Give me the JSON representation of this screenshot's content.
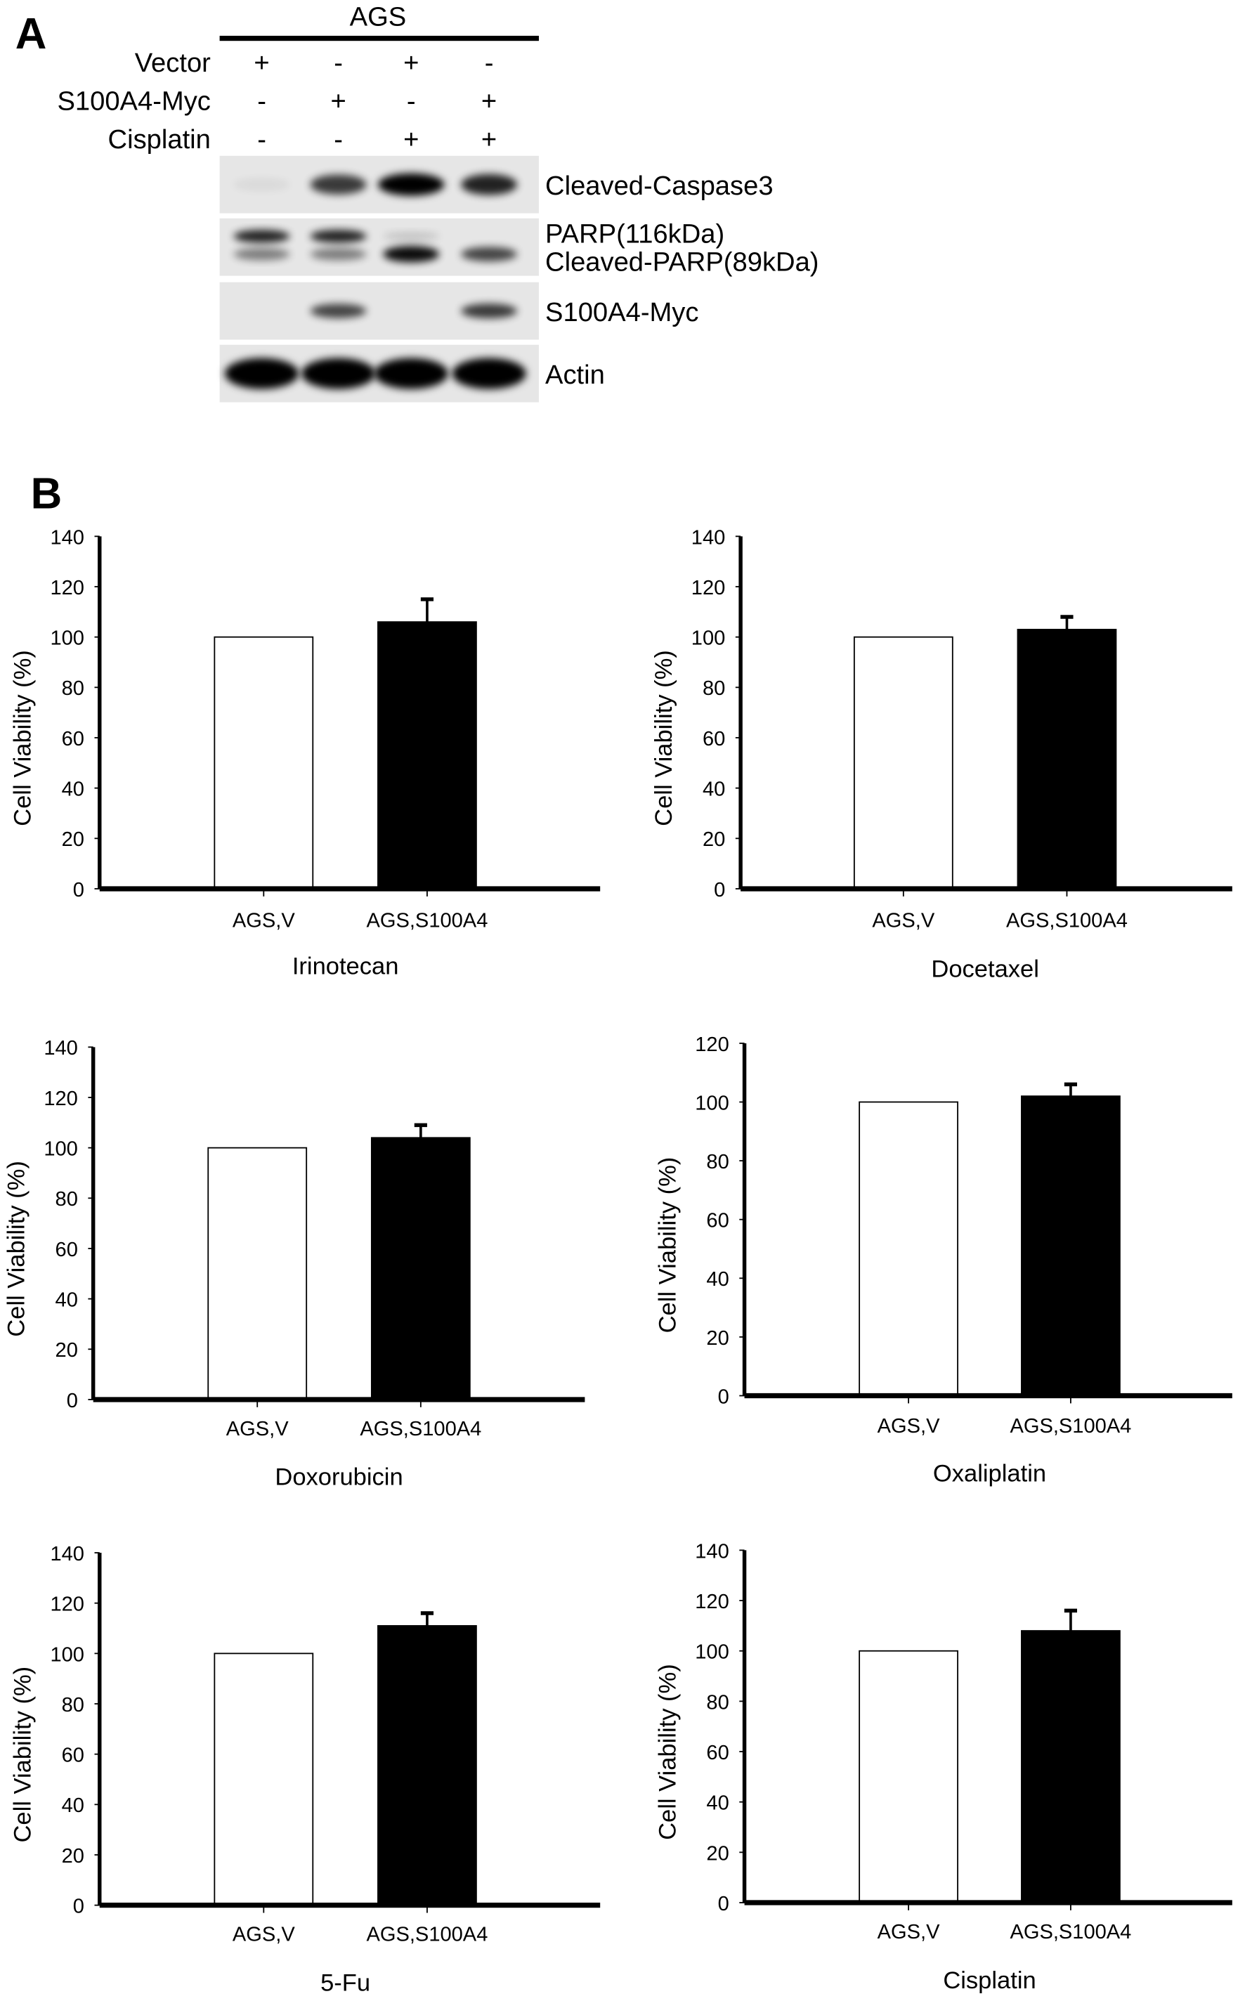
{
  "panel_a": {
    "letter": "A",
    "cell_line": "AGS",
    "conditions": [
      {
        "label": "Vector",
        "signs": [
          "+",
          "-",
          "+",
          "-"
        ]
      },
      {
        "label": "S100A4-Myc",
        "signs": [
          "-",
          "+",
          "-",
          "+"
        ]
      },
      {
        "label": "Cisplatin",
        "signs": [
          "-",
          "-",
          "+",
          "+"
        ]
      }
    ],
    "blots": [
      {
        "labels": [
          "Cleaved-Caspase3"
        ],
        "band_intensity": [
          0.05,
          0.75,
          1.0,
          0.85
        ]
      },
      {
        "labels": [
          "PARP(116kDa)",
          "Cleaved-PARP(89kDa)"
        ],
        "band_intensity_upper": [
          0.85,
          0.85,
          0.15,
          0.0
        ],
        "band_intensity_lower": [
          0.45,
          0.45,
          0.95,
          0.7
        ]
      },
      {
        "labels": [
          "S100A4-Myc"
        ],
        "band_intensity": [
          0.0,
          0.7,
          0.0,
          0.75
        ]
      },
      {
        "labels": [
          "Actin"
        ],
        "band_intensity": [
          1.0,
          1.0,
          1.0,
          1.0
        ]
      }
    ]
  },
  "panel_b": {
    "letter": "B"
  },
  "chart_data": [
    {
      "type": "bar",
      "title": "Irinotecan",
      "ylabel": "Cell Viability (%)",
      "categories": [
        "AGS,V",
        "AGS,S100A4"
      ],
      "values": [
        100,
        106
      ],
      "errors": [
        0,
        9
      ],
      "ylim": [
        0,
        140
      ],
      "yticks": [
        0,
        20,
        40,
        60,
        80,
        100,
        120,
        140
      ],
      "colors": [
        "#ffffff",
        "#000000"
      ]
    },
    {
      "type": "bar",
      "title": "Docetaxel",
      "ylabel": "Cell Viability (%)",
      "categories": [
        "AGS,V",
        "AGS,S100A4"
      ],
      "values": [
        100,
        103
      ],
      "errors": [
        0,
        5
      ],
      "ylim": [
        0,
        140
      ],
      "yticks": [
        0,
        20,
        40,
        60,
        80,
        100,
        120,
        140
      ],
      "colors": [
        "#ffffff",
        "#000000"
      ]
    },
    {
      "type": "bar",
      "title": "Doxorubicin",
      "ylabel": "Cell Viability (%)",
      "categories": [
        "AGS,V",
        "AGS,S100A4"
      ],
      "values": [
        100,
        104
      ],
      "errors": [
        0,
        5
      ],
      "ylim": [
        0,
        140
      ],
      "yticks": [
        0,
        20,
        40,
        60,
        80,
        100,
        120,
        140
      ],
      "colors": [
        "#ffffff",
        "#000000"
      ]
    },
    {
      "type": "bar",
      "title": "Oxaliplatin",
      "ylabel": "Cell Viability (%)",
      "categories": [
        "AGS,V",
        "AGS,S100A4"
      ],
      "values": [
        100,
        102
      ],
      "errors": [
        0,
        4
      ],
      "ylim": [
        0,
        120
      ],
      "yticks": [
        0,
        20,
        40,
        60,
        80,
        100,
        120
      ],
      "colors": [
        "#ffffff",
        "#000000"
      ]
    },
    {
      "type": "bar",
      "title": "5-Fu",
      "ylabel": "Cell Viability (%)",
      "categories": [
        "AGS,V",
        "AGS,S100A4"
      ],
      "values": [
        100,
        111
      ],
      "errors": [
        0,
        5
      ],
      "ylim": [
        0,
        140
      ],
      "yticks": [
        0,
        20,
        40,
        60,
        80,
        100,
        120,
        140
      ],
      "colors": [
        "#ffffff",
        "#000000"
      ]
    },
    {
      "type": "bar",
      "title": "Cisplatin",
      "ylabel": "Cell Viability (%)",
      "categories": [
        "AGS,V",
        "AGS,S100A4"
      ],
      "values": [
        100,
        108
      ],
      "errors": [
        0,
        8
      ],
      "ylim": [
        0,
        140
      ],
      "yticks": [
        0,
        20,
        40,
        60,
        80,
        100,
        120,
        140
      ],
      "colors": [
        "#ffffff",
        "#000000"
      ]
    }
  ]
}
